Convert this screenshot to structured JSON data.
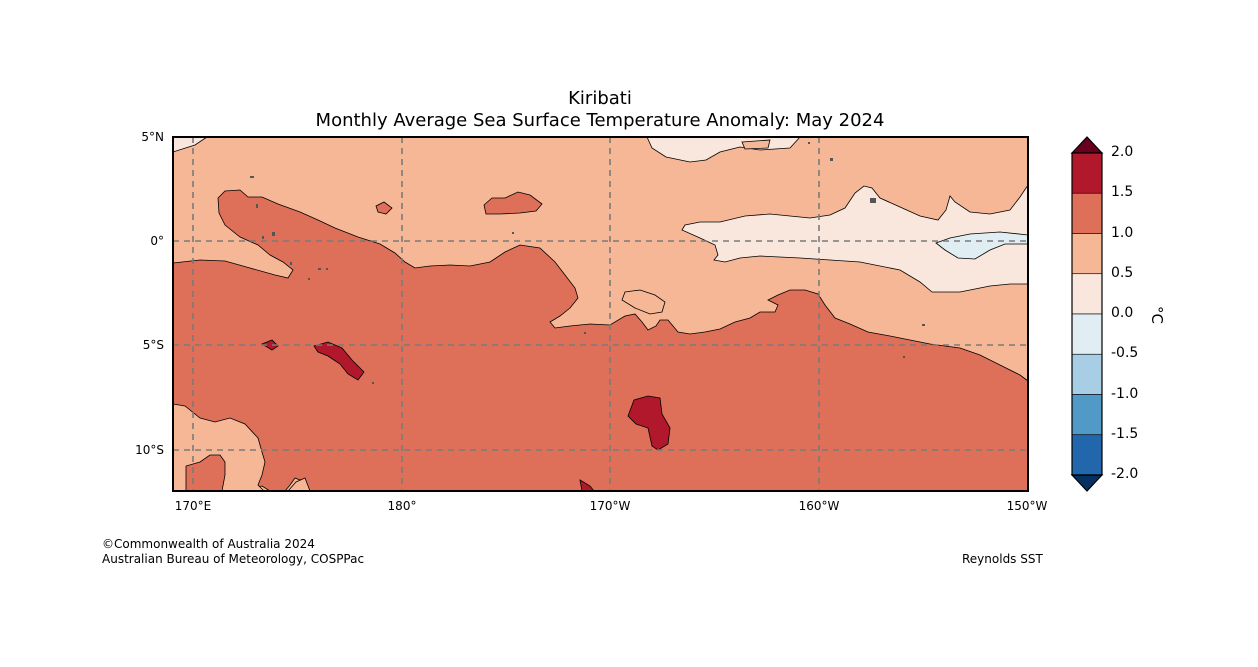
{
  "title": "Kiribati",
  "subtitle": "Monthly Average Sea Surface Temperature Anomaly: May 2024",
  "lat_labels": [
    "5°N",
    "0°",
    "5°S",
    "10°S"
  ],
  "lon_labels": [
    "170°E",
    "180°",
    "170°W",
    "160°W",
    "150°W"
  ],
  "colorbar": {
    "unit": "°C",
    "ticks": [
      "2.0",
      "1.5",
      "1.0",
      "0.5",
      "0.0",
      "-0.5",
      "-1.0",
      "-1.5",
      "-2.0"
    ],
    "colors": [
      "#b2182b",
      "#de6f58",
      "#f6b797",
      "#f9e6dc",
      "#e0edf3",
      "#a7cee4",
      "#5199c7",
      "#2266ac"
    ],
    "over_color": "#67001f",
    "under_color": "#053061"
  },
  "credits": {
    "line1": "©Commonwealth of Australia 2024",
    "line2": "Australian Bureau of Meteorology, COSPPac",
    "source": "Reynolds SST"
  }
}
